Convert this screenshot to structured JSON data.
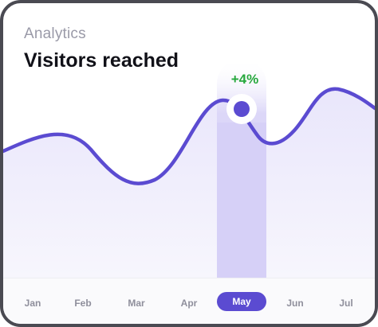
{
  "header": {
    "subtitle": "Analytics",
    "title": "Visitors reached"
  },
  "highlight": {
    "month": "May",
    "delta_text": "+4%"
  },
  "colors": {
    "line": "#5b4bd1",
    "area": "#efedfb",
    "highlight_band": "#ddd9f8",
    "delta": "#27a83d",
    "active_pill": "#5b4bd1"
  },
  "chart_data": {
    "type": "area",
    "categories": [
      "Jan",
      "Feb",
      "Mar",
      "Apr",
      "May",
      "Jun",
      "Jul"
    ],
    "highlighted_index": 4,
    "grid": false,
    "legend": "none"
  }
}
